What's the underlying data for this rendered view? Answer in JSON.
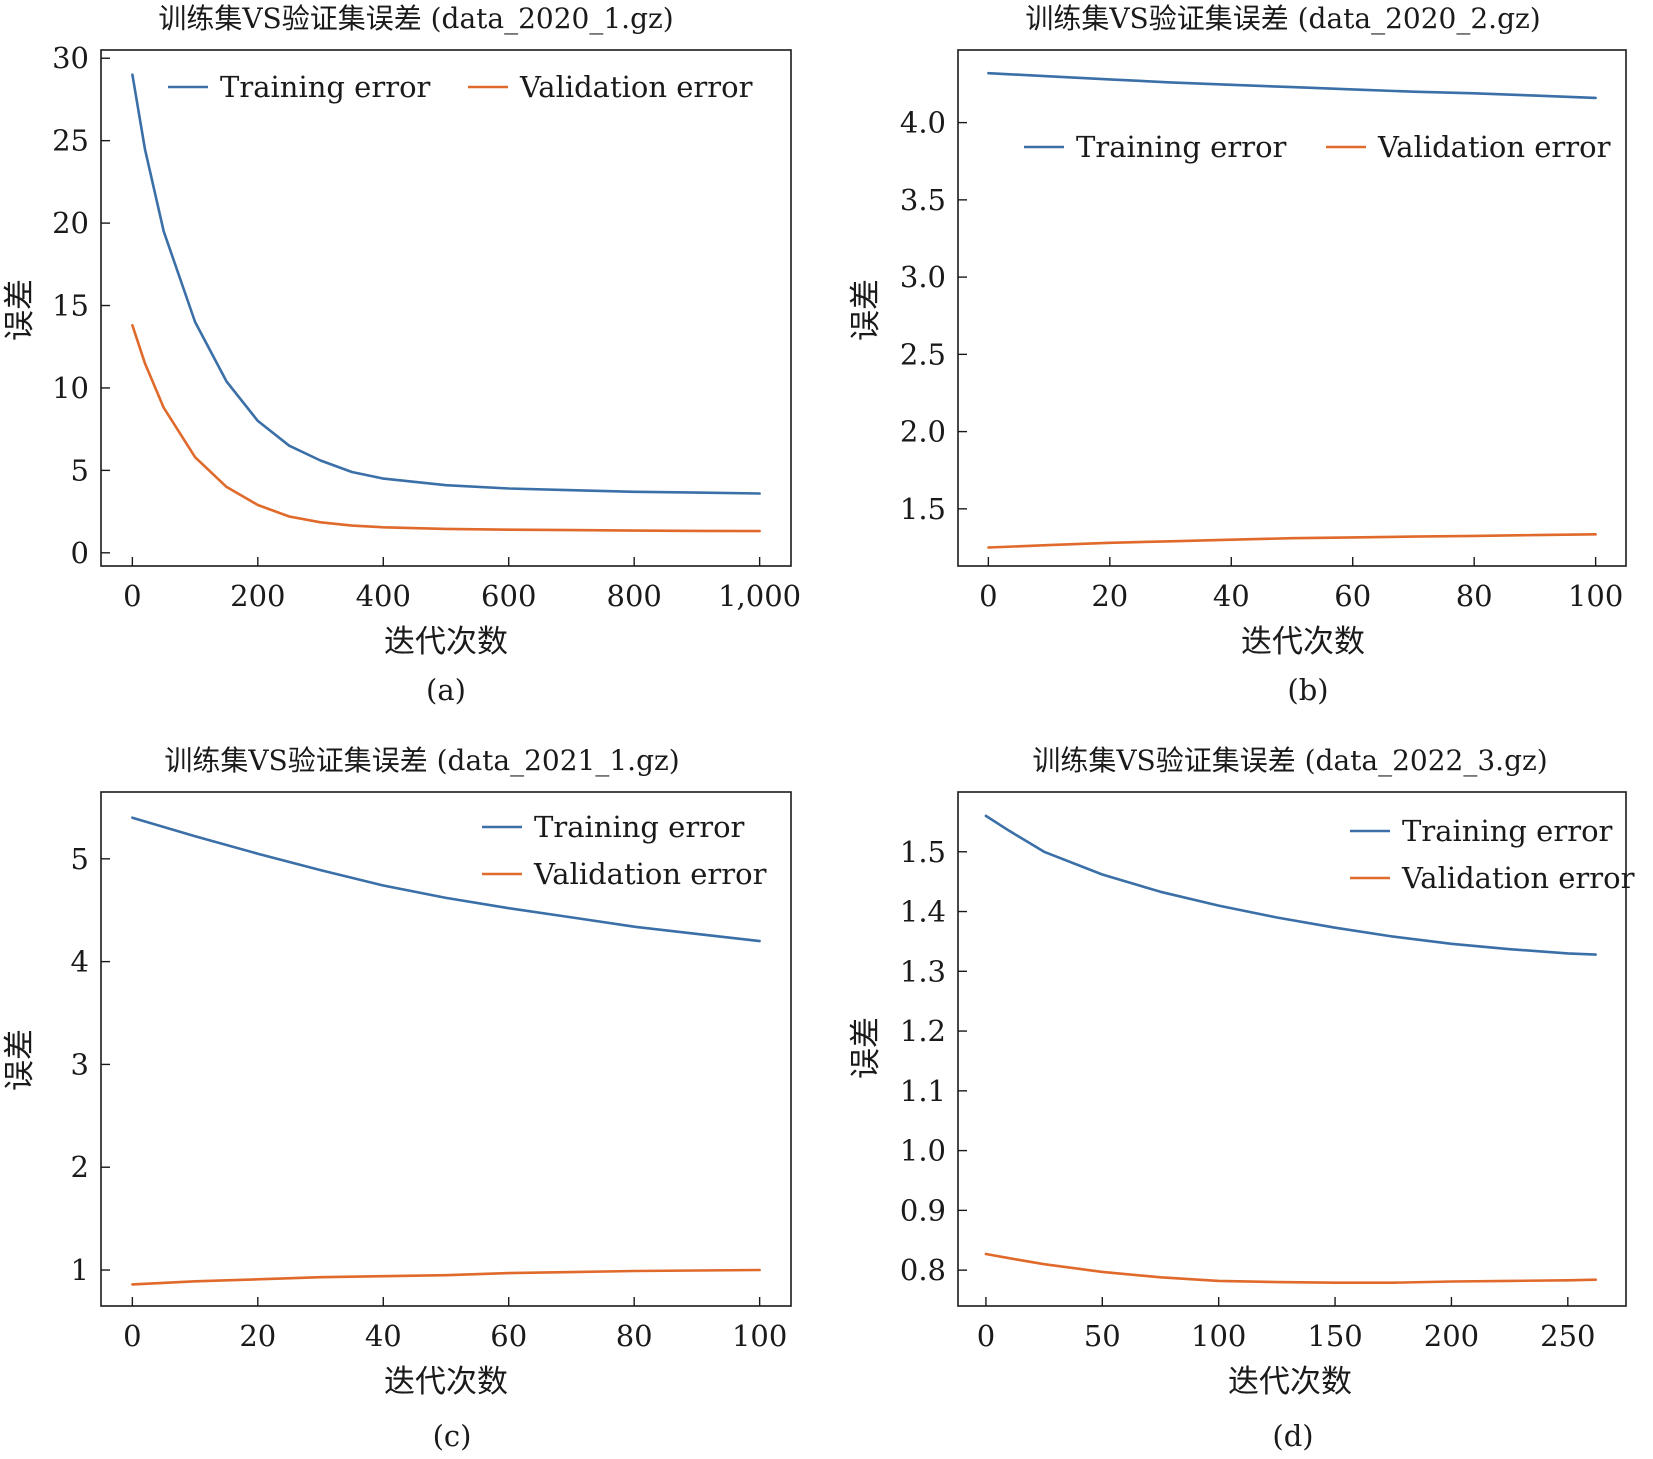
{
  "figure": {
    "colors": {
      "training": "#3b6fa7",
      "validation": "#e06a2b",
      "axis": "#1a1a1a"
    }
  },
  "chart_data": [
    {
      "type": "line",
      "title": "训练集VS验证集误差 (data_2020_1.gz)",
      "xlabel": "迭代次数",
      "ylabel": "误差",
      "caption": "(a)",
      "xlim": [
        -50,
        1050
      ],
      "ylim": [
        -0.8,
        30.5
      ],
      "xticks": [
        0,
        200,
        400,
        600,
        800,
        1000
      ],
      "xtick_labels": [
        "0",
        "200",
        "400",
        "600",
        "800",
        "1,000"
      ],
      "yticks": [
        0,
        5,
        10,
        15,
        20,
        25,
        30
      ],
      "ytick_labels": [
        "0",
        "5",
        "10",
        "15",
        "20",
        "25",
        "30"
      ],
      "legend_position": "top",
      "legend_layout": "row",
      "series": [
        {
          "name": "Training error",
          "color": "#3b6fa7",
          "x": [
            0,
            20,
            50,
            100,
            150,
            200,
            250,
            300,
            350,
            400,
            500,
            600,
            700,
            800,
            900,
            1000
          ],
          "y": [
            29.0,
            24.5,
            19.5,
            14.0,
            10.4,
            8.0,
            6.5,
            5.6,
            4.9,
            4.5,
            4.1,
            3.9,
            3.8,
            3.7,
            3.65,
            3.6
          ]
        },
        {
          "name": "Validation error",
          "color": "#e06a2b",
          "x": [
            0,
            20,
            50,
            100,
            150,
            200,
            250,
            300,
            350,
            400,
            500,
            600,
            700,
            800,
            900,
            1000
          ],
          "y": [
            13.8,
            11.5,
            8.8,
            5.8,
            4.0,
            2.9,
            2.2,
            1.85,
            1.65,
            1.55,
            1.45,
            1.4,
            1.38,
            1.35,
            1.33,
            1.32
          ]
        }
      ]
    },
    {
      "type": "line",
      "title": "训练集VS验证集误差 (data_2020_2.gz)",
      "xlabel": "迭代次数",
      "ylabel": "误差",
      "caption": "(b)",
      "xlim": [
        -5,
        105
      ],
      "ylim": [
        1.13,
        4.47
      ],
      "xticks": [
        0,
        20,
        40,
        60,
        80,
        100
      ],
      "xtick_labels": [
        "0",
        "20",
        "40",
        "60",
        "80",
        "100"
      ],
      "yticks": [
        1.5,
        2.0,
        2.5,
        3.0,
        3.5,
        4.0
      ],
      "ytick_labels": [
        "1.5",
        "2.0",
        "2.5",
        "3.0",
        "3.5",
        "4.0"
      ],
      "legend_position": "upper",
      "legend_layout": "row",
      "series": [
        {
          "name": "Training error",
          "color": "#3b6fa7",
          "x": [
            0,
            10,
            20,
            30,
            40,
            50,
            60,
            70,
            80,
            90,
            100
          ],
          "y": [
            4.32,
            4.3,
            4.28,
            4.26,
            4.245,
            4.23,
            4.215,
            4.2,
            4.19,
            4.175,
            4.16
          ]
        },
        {
          "name": "Validation error",
          "color": "#e06a2b",
          "x": [
            0,
            10,
            20,
            30,
            40,
            50,
            60,
            70,
            80,
            90,
            100
          ],
          "y": [
            1.25,
            1.265,
            1.28,
            1.29,
            1.3,
            1.31,
            1.315,
            1.32,
            1.325,
            1.33,
            1.335
          ]
        }
      ]
    },
    {
      "type": "line",
      "title": "训练集VS验证集误差 (data_2021_1.gz)",
      "xlabel": "迭代次数",
      "ylabel": "误差",
      "caption": "(c)",
      "xlim": [
        -5,
        105
      ],
      "ylim": [
        0.65,
        5.65
      ],
      "xticks": [
        0,
        20,
        40,
        60,
        80,
        100
      ],
      "xtick_labels": [
        "0",
        "20",
        "40",
        "60",
        "80",
        "100"
      ],
      "yticks": [
        1,
        2,
        3,
        4,
        5
      ],
      "ytick_labels": [
        "1",
        "2",
        "3",
        "4",
        "5"
      ],
      "legend_position": "top-right",
      "legend_layout": "column",
      "series": [
        {
          "name": "Training error",
          "color": "#3b6fa7",
          "x": [
            0,
            10,
            20,
            30,
            40,
            50,
            60,
            70,
            80,
            90,
            100
          ],
          "y": [
            5.4,
            5.22,
            5.05,
            4.89,
            4.74,
            4.62,
            4.52,
            4.43,
            4.34,
            4.27,
            4.2
          ]
        },
        {
          "name": "Validation error",
          "color": "#e06a2b",
          "x": [
            0,
            10,
            20,
            30,
            40,
            50,
            60,
            70,
            80,
            90,
            100
          ],
          "y": [
            0.86,
            0.89,
            0.91,
            0.93,
            0.94,
            0.95,
            0.97,
            0.98,
            0.99,
            0.995,
            1.0
          ]
        }
      ]
    },
    {
      "type": "line",
      "title": "训练集VS验证集误差 (data_2022_3.gz)",
      "xlabel": "迭代次数",
      "ylabel": "误差",
      "caption": "(d)",
      "xlim": [
        -12,
        275
      ],
      "ylim": [
        0.74,
        1.6
      ],
      "xticks": [
        0,
        50,
        100,
        150,
        200,
        250
      ],
      "xtick_labels": [
        "0",
        "50",
        "100",
        "150",
        "200",
        "250"
      ],
      "yticks": [
        0.8,
        0.9,
        1.0,
        1.1,
        1.2,
        1.3,
        1.4,
        1.5
      ],
      "ytick_labels": [
        "0.8",
        "0.9",
        "1.0",
        "1.1",
        "1.2",
        "1.3",
        "1.4",
        "1.5"
      ],
      "legend_position": "top-right",
      "legend_layout": "column",
      "series": [
        {
          "name": "Training error",
          "color": "#3b6fa7",
          "x": [
            0,
            10,
            25,
            50,
            75,
            100,
            125,
            150,
            175,
            200,
            225,
            250,
            262
          ],
          "y": [
            1.56,
            1.535,
            1.5,
            1.462,
            1.433,
            1.41,
            1.39,
            1.373,
            1.358,
            1.346,
            1.337,
            1.33,
            1.328
          ]
        },
        {
          "name": "Validation error",
          "color": "#e06a2b",
          "x": [
            0,
            10,
            25,
            50,
            75,
            100,
            125,
            150,
            175,
            200,
            225,
            250,
            262
          ],
          "y": [
            0.827,
            0.82,
            0.81,
            0.797,
            0.788,
            0.782,
            0.78,
            0.779,
            0.779,
            0.781,
            0.782,
            0.783,
            0.784
          ]
        }
      ]
    }
  ]
}
